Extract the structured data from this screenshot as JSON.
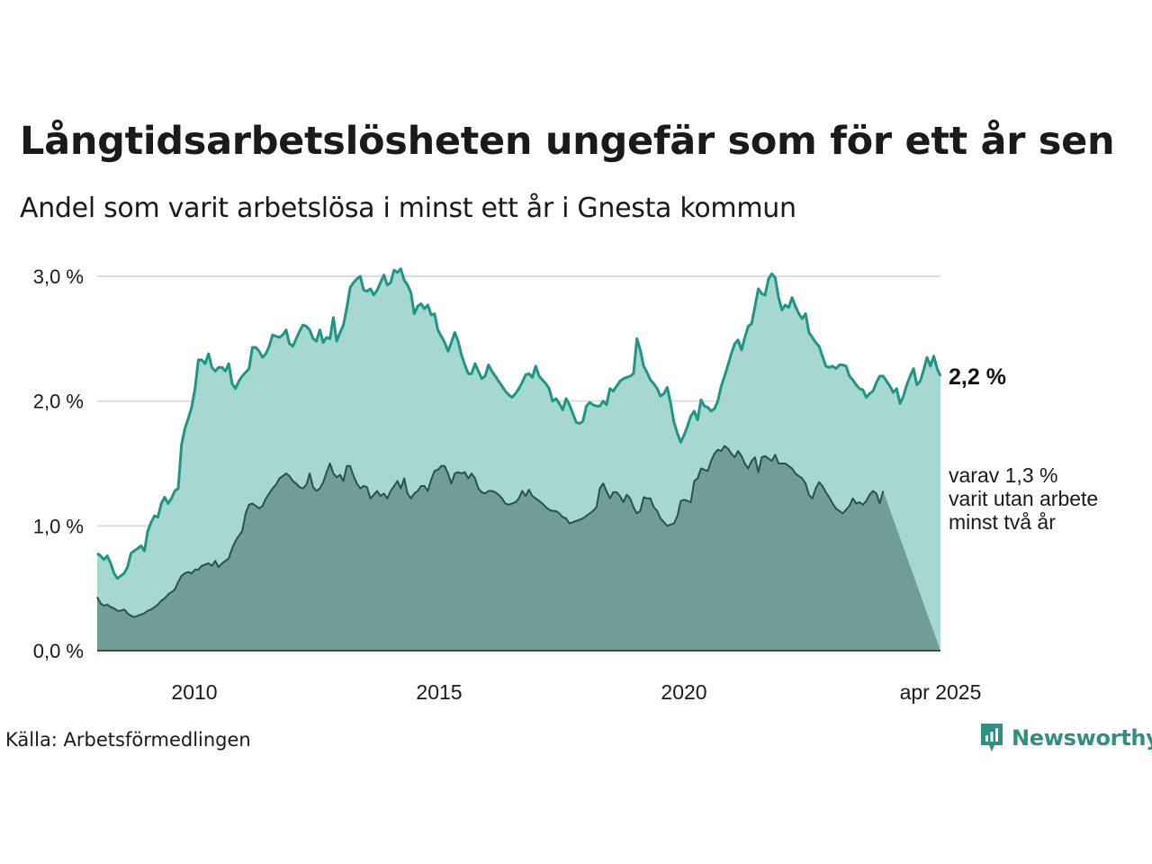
{
  "title": "Långtidsarbetslösheten ungefär som för ett år sen",
  "subtitle": "Andel som varit arbetslösa i minst ett år i Gnesta kommun",
  "source": "Källa: Arbetsförmedlingen",
  "logo_text": "Newsworthy",
  "colors": {
    "main_line": "#1f9585",
    "main_fill": "#a6d7d1",
    "sub_line": "#2a524c",
    "sub_fill": "#729d96",
    "grid": "#dddddd",
    "text": "#1a1a1a",
    "logo": "#2f8f83"
  },
  "chart_data": {
    "type": "area",
    "x_ticks": [
      "2010",
      "2015",
      "2020",
      "apr 2025"
    ],
    "y_ticks": [
      "0,0 %",
      "1,0 %",
      "2,0 %",
      "3,0 %"
    ],
    "ylim": [
      0,
      3.0
    ],
    "grid": true,
    "end_labels": {
      "main": "2,2 %",
      "sub_lines": [
        "varav 1,3 %",
        "varit utan arbete",
        "minst två år"
      ]
    },
    "series": [
      {
        "key": "main",
        "values": [
          0.78,
          0.76,
          0.73,
          0.76,
          0.7,
          0.62,
          0.58,
          0.6,
          0.62,
          0.67,
          0.78,
          0.8,
          0.82,
          0.84,
          0.8,
          0.96,
          1.03,
          1.08,
          1.07,
          1.18,
          1.23,
          1.18,
          1.22,
          1.28,
          1.3,
          1.65,
          1.78,
          1.86,
          1.95,
          2.1,
          2.33,
          2.33,
          2.3,
          2.38,
          2.27,
          2.24,
          2.27,
          2.27,
          2.24,
          2.3,
          2.14,
          2.1,
          2.16,
          2.2,
          2.23,
          2.26,
          2.43,
          2.43,
          2.4,
          2.35,
          2.38,
          2.44,
          2.53,
          2.52,
          2.51,
          2.53,
          2.57,
          2.46,
          2.44,
          2.5,
          2.56,
          2.61,
          2.6,
          2.57,
          2.5,
          2.48,
          2.57,
          2.47,
          2.51,
          2.5,
          2.67,
          2.48,
          2.55,
          2.61,
          2.75,
          2.91,
          2.95,
          2.98,
          3.0,
          2.89,
          2.88,
          2.9,
          2.85,
          2.89,
          2.95,
          3.01,
          2.93,
          2.95,
          3.05,
          3.03,
          3.06,
          2.97,
          2.93,
          2.87,
          2.7,
          2.76,
          2.78,
          2.74,
          2.77,
          2.69,
          2.7,
          2.57,
          2.52,
          2.47,
          2.4,
          2.47,
          2.55,
          2.48,
          2.37,
          2.29,
          2.22,
          2.22,
          2.3,
          2.24,
          2.18,
          2.2,
          2.29,
          2.24,
          2.2,
          2.16,
          2.12,
          2.08,
          2.05,
          2.03,
          2.06,
          2.1,
          2.15,
          2.21,
          2.22,
          2.19,
          2.28,
          2.2,
          2.17,
          2.14,
          2.1,
          2.0,
          2.02,
          1.98,
          1.93,
          2.02,
          1.97,
          1.9,
          1.83,
          1.82,
          1.84,
          1.96,
          1.99,
          1.97,
          1.96,
          1.96,
          2.0,
          1.97,
          2.1,
          2.08,
          2.12,
          2.16,
          2.18,
          2.19,
          2.2,
          2.22,
          2.5,
          2.41,
          2.28,
          2.23,
          2.17,
          2.14,
          2.1,
          2.04,
          2.06,
          2.11,
          1.98,
          1.83,
          1.74,
          1.67,
          1.73,
          1.8,
          1.88,
          1.92,
          1.85,
          2.01,
          1.96,
          1.95,
          1.92,
          1.94,
          2.0,
          2.12,
          2.2,
          2.29,
          2.38,
          2.46,
          2.49,
          2.41,
          2.51,
          2.6,
          2.62,
          2.76,
          2.9,
          2.86,
          2.85,
          2.98,
          3.02,
          2.99,
          2.83,
          2.73,
          2.77,
          2.75,
          2.83,
          2.76,
          2.7,
          2.66,
          2.7,
          2.55,
          2.51,
          2.47,
          2.44,
          2.36,
          2.28,
          2.27,
          2.28,
          2.26,
          2.29,
          2.29,
          2.28,
          2.2,
          2.17,
          2.13,
          2.1,
          2.09,
          2.03,
          2.06,
          2.08,
          2.15,
          2.2,
          2.2,
          2.16,
          2.12,
          2.07,
          2.1,
          1.98,
          2.04,
          2.13,
          2.2,
          2.26,
          2.13,
          2.16,
          2.25,
          2.35,
          2.28,
          2.36,
          2.26,
          2.2
        ]
      },
      {
        "key": "sub",
        "values": [
          0.43,
          0.38,
          0.36,
          0.37,
          0.35,
          0.34,
          0.32,
          0.32,
          0.33,
          0.3,
          0.28,
          0.27,
          0.28,
          0.29,
          0.3,
          0.32,
          0.33,
          0.35,
          0.37,
          0.4,
          0.42,
          0.45,
          0.47,
          0.49,
          0.55,
          0.6,
          0.62,
          0.63,
          0.62,
          0.65,
          0.65,
          0.68,
          0.69,
          0.7,
          0.68,
          0.72,
          0.67,
          0.7,
          0.72,
          0.74,
          0.82,
          0.88,
          0.92,
          0.96,
          1.1,
          1.17,
          1.18,
          1.16,
          1.14,
          1.16,
          1.22,
          1.26,
          1.3,
          1.33,
          1.38,
          1.4,
          1.42,
          1.4,
          1.36,
          1.34,
          1.31,
          1.3,
          1.33,
          1.42,
          1.31,
          1.28,
          1.3,
          1.35,
          1.43,
          1.5,
          1.42,
          1.39,
          1.41,
          1.36,
          1.48,
          1.48,
          1.4,
          1.34,
          1.3,
          1.32,
          1.31,
          1.22,
          1.25,
          1.28,
          1.24,
          1.26,
          1.22,
          1.28,
          1.32,
          1.36,
          1.3,
          1.38,
          1.26,
          1.22,
          1.26,
          1.28,
          1.32,
          1.32,
          1.28,
          1.37,
          1.44,
          1.45,
          1.48,
          1.48,
          1.42,
          1.34,
          1.42,
          1.43,
          1.42,
          1.43,
          1.38,
          1.42,
          1.38,
          1.3,
          1.27,
          1.26,
          1.28,
          1.28,
          1.27,
          1.25,
          1.22,
          1.18,
          1.17,
          1.18,
          1.19,
          1.22,
          1.28,
          1.24,
          1.29,
          1.24,
          1.22,
          1.2,
          1.18,
          1.15,
          1.13,
          1.12,
          1.12,
          1.1,
          1.07,
          1.06,
          1.02,
          1.03,
          1.04,
          1.05,
          1.06,
          1.08,
          1.1,
          1.12,
          1.15,
          1.3,
          1.34,
          1.28,
          1.22,
          1.27,
          1.27,
          1.24,
          1.19,
          1.25,
          1.22,
          1.15,
          1.1,
          1.12,
          1.23,
          1.22,
          1.22,
          1.15,
          1.12,
          1.06,
          1.03,
          1.0,
          1.01,
          1.02,
          1.08,
          1.2,
          1.21,
          1.2,
          1.19,
          1.36,
          1.38,
          1.46,
          1.45,
          1.44,
          1.52,
          1.58,
          1.61,
          1.6,
          1.64,
          1.62,
          1.58,
          1.55,
          1.6,
          1.56,
          1.5,
          1.46,
          1.52,
          1.55,
          1.43,
          1.55,
          1.56,
          1.54,
          1.52,
          1.57,
          1.5,
          1.5,
          1.5,
          1.48,
          1.46,
          1.42,
          1.4,
          1.38,
          1.34,
          1.25,
          1.22,
          1.3,
          1.35,
          1.32,
          1.27,
          1.23,
          1.18,
          1.14,
          1.12,
          1.1,
          1.13,
          1.16,
          1.22,
          1.18,
          1.19,
          1.17,
          1.2,
          1.25,
          1.28,
          1.26,
          1.18,
          1.28
        ]
      }
    ]
  }
}
